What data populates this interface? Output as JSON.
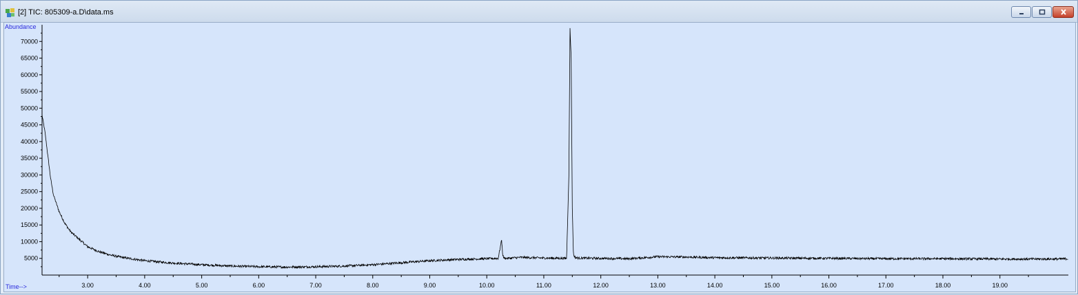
{
  "window": {
    "title": "[2] TIC: 805309-a.D\\data.ms",
    "icon": "chromatogram-app-icon",
    "controls": [
      "minimize",
      "maximize",
      "close"
    ]
  },
  "chart_data": {
    "type": "line",
    "ylabel": "Abundance",
    "xlabel": "Time-->",
    "xlim": [
      2.2,
      20.2
    ],
    "ylim": [
      0,
      75000
    ],
    "x_ticks": [
      3.0,
      4.0,
      5.0,
      6.0,
      7.0,
      8.0,
      9.0,
      10.0,
      11.0,
      12.0,
      13.0,
      14.0,
      15.0,
      16.0,
      17.0,
      18.0,
      19.0
    ],
    "x_tick_labels": [
      "3.00",
      "4.00",
      "5.00",
      "6.00",
      "7.00",
      "8.00",
      "9.00",
      "10.00",
      "11.00",
      "12.00",
      "13.00",
      "14.00",
      "15.00",
      "16.00",
      "17.00",
      "18.00",
      "19.00"
    ],
    "y_ticks": [
      5000,
      10000,
      15000,
      20000,
      25000,
      30000,
      35000,
      40000,
      45000,
      50000,
      55000,
      60000,
      65000,
      70000
    ],
    "y_tick_labels": [
      "5000",
      "10000",
      "15000",
      "20000",
      "25000",
      "30000",
      "35000",
      "40000",
      "45000",
      "50000",
      "55000",
      "60000",
      "65000",
      "70000"
    ],
    "series": [
      {
        "x": [
          2.2,
          2.25,
          2.3,
          2.35,
          2.4,
          2.5,
          2.6,
          2.7,
          2.8,
          3.0,
          3.2,
          3.4,
          3.6,
          3.8,
          4.0,
          4.5,
          5.0,
          5.5,
          6.0,
          6.5,
          7.0,
          7.5,
          8.0,
          8.5,
          9.0,
          9.5,
          10.0,
          10.2,
          10.26,
          10.28,
          10.3,
          10.35,
          10.6,
          11.0,
          11.4,
          11.44,
          11.46,
          11.48,
          11.5,
          11.52,
          11.56,
          11.6,
          12.0,
          12.5,
          13.0,
          13.5,
          14.0,
          15.0,
          16.0,
          17.0,
          18.0,
          19.0,
          20.0,
          20.2
        ],
        "y": [
          48000,
          43000,
          36000,
          29000,
          24000,
          19000,
          15500,
          13000,
          11500,
          8500,
          7000,
          6000,
          5300,
          4800,
          4300,
          3600,
          3100,
          2700,
          2500,
          2400,
          2500,
          2700,
          3100,
          3700,
          4300,
          4700,
          4900,
          5000,
          10500,
          6000,
          5100,
          5000,
          5300,
          5100,
          5000,
          30000,
          74000,
          65000,
          20000,
          6000,
          5200,
          5100,
          5000,
          4900,
          5500,
          5400,
          5200,
          5100,
          5000,
          4900,
          4900,
          4800,
          4800,
          4900
        ]
      }
    ],
    "grid": false,
    "background": "#d6e5fb",
    "line_color": "#000000"
  }
}
